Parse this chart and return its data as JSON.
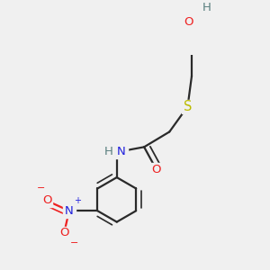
{
  "bg_color": "#f0f0f0",
  "bond_color": "#2a2a2a",
  "bond_width": 1.6,
  "colors": {
    "C": "#2a2a2a",
    "H": "#5a8080",
    "N": "#2020dd",
    "O": "#ee2020",
    "S": "#bbbb00"
  },
  "figsize": [
    3.0,
    3.0
  ],
  "dpi": 100
}
